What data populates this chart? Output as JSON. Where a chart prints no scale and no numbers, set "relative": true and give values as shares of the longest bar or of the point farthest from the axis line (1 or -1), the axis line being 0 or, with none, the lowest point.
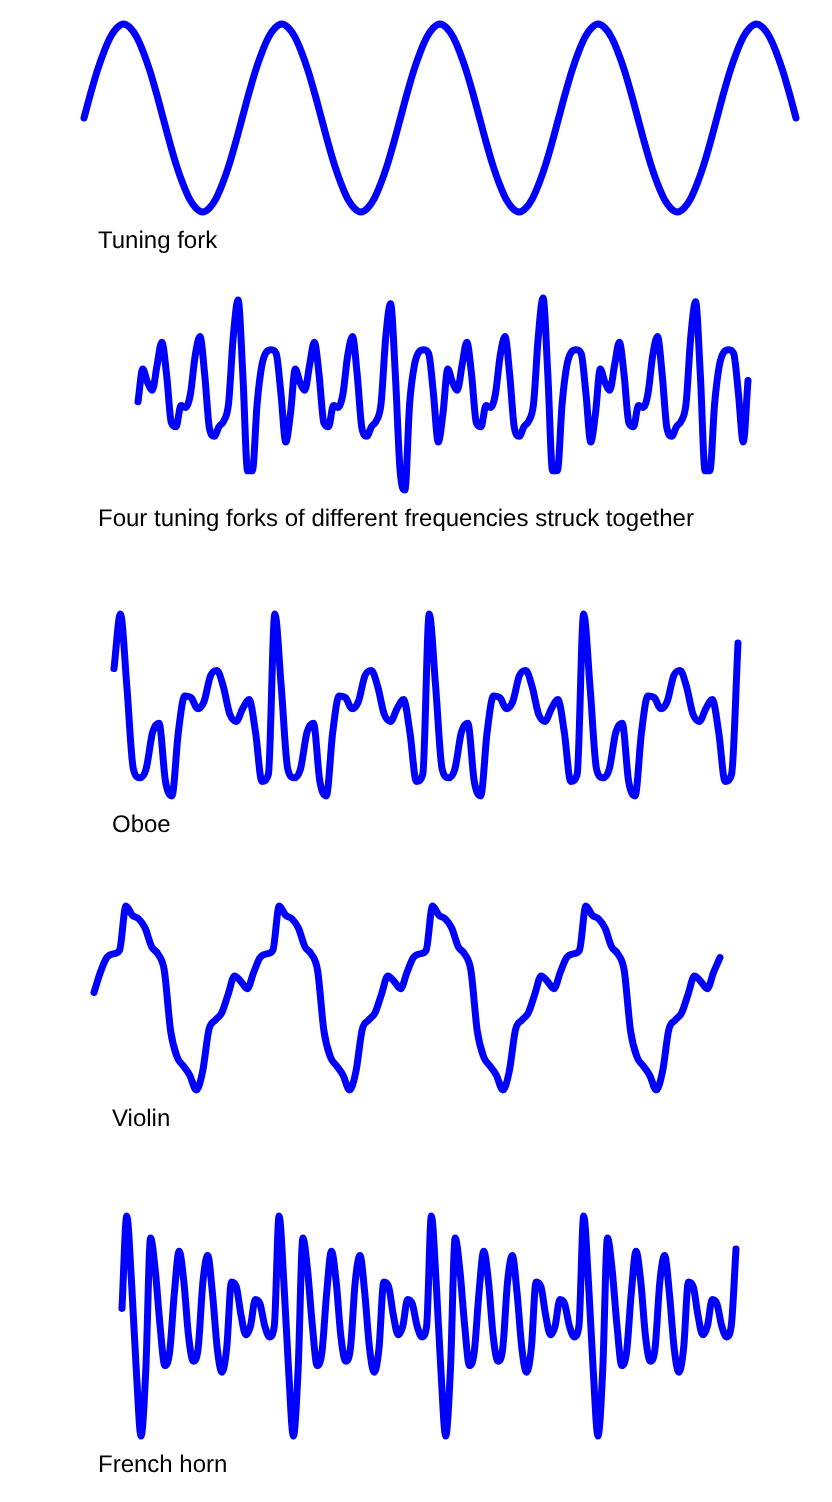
{
  "chart_data": [
    {
      "type": "line",
      "title": "Tuning fork",
      "relative": true,
      "marker": "none",
      "color": "#0000ff",
      "categories": [
        null,
        null,
        null,
        null,
        null,
        null,
        null,
        null,
        null,
        null,
        null,
        null,
        null,
        null,
        null,
        null,
        null,
        null,
        null,
        null,
        null,
        null,
        null,
        null,
        null,
        null,
        null,
        null,
        null,
        null,
        null,
        null,
        null,
        null,
        null,
        null,
        null,
        null,
        null,
        null,
        null,
        null,
        null,
        null,
        null,
        null,
        null,
        null,
        null,
        null,
        null,
        null,
        null,
        null,
        null,
        null,
        null,
        null,
        null,
        null,
        null,
        null,
        null,
        null,
        null,
        null,
        null,
        null,
        null,
        null,
        null,
        null,
        null,
        null,
        null,
        null,
        null,
        null,
        null,
        null,
        null,
        null,
        null,
        null,
        null,
        null,
        null,
        null,
        null,
        null,
        null,
        null,
        null,
        null,
        null,
        null,
        null,
        null,
        null,
        null,
        null,
        null,
        null,
        null,
        null,
        null,
        null,
        null,
        null
      ],
      "values": [
        0.5,
        0.63,
        0.75,
        0.85,
        0.93,
        0.98,
        1,
        0.98,
        0.93,
        0.85,
        0.75,
        0.63,
        0.5,
        0.37,
        0.25,
        0.15,
        0.07,
        0.02,
        0,
        0.02,
        0.07,
        0.15,
        0.25,
        0.37,
        0.5,
        0.63,
        0.75,
        0.85,
        0.93,
        0.98,
        1,
        0.98,
        0.93,
        0.85,
        0.75,
        0.63,
        0.5,
        0.37,
        0.25,
        0.15,
        0.07,
        0.02,
        0,
        0.02,
        0.07,
        0.15,
        0.25,
        0.37,
        0.5,
        0.63,
        0.75,
        0.85,
        0.93,
        0.98,
        1,
        0.98,
        0.93,
        0.85,
        0.75,
        0.63,
        0.5,
        0.37,
        0.25,
        0.15,
        0.07,
        0.02,
        0,
        0.02,
        0.07,
        0.15,
        0.25,
        0.37,
        0.5,
        0.63,
        0.75,
        0.85,
        0.93,
        0.98,
        1,
        0.98,
        0.93,
        0.85,
        0.75,
        0.63,
        0.5,
        0.37,
        0.25,
        0.15,
        0.07,
        0.02,
        0,
        0.02,
        0.07,
        0.15,
        0.25,
        0.37,
        0.5,
        0.63,
        0.75,
        0.85,
        0.93,
        0.98,
        1,
        0.98,
        0.93,
        0.85,
        0.75,
        0.63,
        0.5
      ]
    },
    {
      "type": "line",
      "title": "Four tuning forks of different frequencies struck together",
      "relative": true,
      "marker": "none",
      "color": "#0000ff",
      "categories": [
        null,
        null,
        null,
        null,
        null,
        null,
        null,
        null,
        null,
        null,
        null,
        null,
        null,
        null,
        null,
        null,
        null,
        null,
        null,
        null,
        null,
        null,
        null,
        null,
        null,
        null,
        null,
        null,
        null,
        null,
        null,
        null,
        null,
        null,
        null,
        null,
        null,
        null,
        null,
        null,
        null,
        null,
        null,
        null,
        null,
        null,
        null,
        null,
        null,
        null,
        null,
        null,
        null,
        null,
        null,
        null,
        null,
        null,
        null,
        null,
        null,
        null,
        null,
        null,
        null,
        null,
        null,
        null,
        null,
        null,
        null,
        null,
        null,
        null,
        null,
        null,
        null,
        null,
        null,
        null,
        null,
        null,
        null,
        null,
        null,
        null,
        null,
        null,
        null,
        null,
        null,
        null,
        null,
        null,
        null,
        null,
        null,
        null,
        null,
        null,
        null,
        null,
        null,
        null,
        null,
        null,
        null,
        null,
        null,
        null,
        null,
        null,
        null,
        null,
        null,
        null,
        null,
        null,
        null,
        null,
        null,
        null,
        null,
        null,
        null,
        null,
        null,
        null,
        null
      ],
      "values": [
        0.46,
        0.63,
        0.56,
        0.52,
        0.65,
        0.77,
        0.6,
        0.35,
        0.33,
        0.44,
        0.43,
        0.5,
        0.7,
        0.8,
        0.6,
        0.32,
        0.28,
        0.33,
        0.36,
        0.45,
        0.8,
        0.99,
        0.6,
        0.1,
        0.1,
        0.45,
        0.65,
        0.72,
        0.73,
        0.71,
        0.5,
        0.25,
        0.4,
        0.63,
        0.56,
        0.52,
        0.65,
        0.77,
        0.6,
        0.35,
        0.33,
        0.44,
        0.43,
        0.5,
        0.7,
        0.8,
        0.6,
        0.32,
        0.28,
        0.33,
        0.36,
        0.45,
        0.8,
        0.97,
        0.6,
        0.1,
        0,
        0.45,
        0.65,
        0.72,
        0.73,
        0.71,
        0.5,
        0.25,
        0.4,
        0.63,
        0.56,
        0.52,
        0.65,
        0.77,
        0.6,
        0.35,
        0.33,
        0.44,
        0.43,
        0.5,
        0.7,
        0.8,
        0.6,
        0.32,
        0.28,
        0.33,
        0.36,
        0.45,
        0.8,
        1,
        0.6,
        0.1,
        0.1,
        0.45,
        0.65,
        0.72,
        0.73,
        0.71,
        0.5,
        0.25,
        0.4,
        0.63,
        0.56,
        0.52,
        0.65,
        0.77,
        0.6,
        0.35,
        0.33,
        0.44,
        0.43,
        0.5,
        0.7,
        0.8,
        0.6,
        0.32,
        0.28,
        0.33,
        0.36,
        0.45,
        0.8,
        0.98,
        0.6,
        0.1,
        0.1,
        0.45,
        0.65,
        0.72,
        0.73,
        0.71,
        0.5,
        0.25,
        0.57
      ]
    },
    {
      "type": "line",
      "title": "Oboe",
      "relative": true,
      "marker": "none",
      "color": "#0000ff",
      "categories": [
        null,
        null,
        null,
        null,
        null,
        null,
        null,
        null,
        null,
        null,
        null,
        null,
        null,
        null,
        null,
        null,
        null,
        null,
        null,
        null,
        null,
        null,
        null,
        null,
        null,
        null,
        null,
        null,
        null,
        null,
        null,
        null,
        null,
        null,
        null,
        null,
        null,
        null,
        null,
        null,
        null,
        null,
        null,
        null,
        null,
        null,
        null,
        null,
        null,
        null,
        null,
        null,
        null,
        null,
        null,
        null,
        null,
        null,
        null,
        null,
        null,
        null,
        null,
        null,
        null,
        null,
        null,
        null,
        null,
        null,
        null,
        null,
        null,
        null,
        null,
        null,
        null,
        null,
        null,
        null,
        null,
        null,
        null,
        null,
        null,
        null,
        null,
        null,
        null,
        null,
        null,
        null,
        null,
        null,
        null,
        null,
        null,
        null
      ],
      "values": [
        0.7,
        1,
        0.6,
        0.15,
        0.1,
        0.15,
        0.35,
        0.4,
        0.08,
        0,
        0.35,
        0.55,
        0.54,
        0.48,
        0.52,
        0.66,
        0.69,
        0.6,
        0.45,
        0.41,
        0.48,
        0.53,
        0.35,
        0.08,
        0.12,
        1,
        0.6,
        0.15,
        0.1,
        0.15,
        0.35,
        0.4,
        0.08,
        0,
        0.35,
        0.55,
        0.54,
        0.48,
        0.52,
        0.66,
        0.69,
        0.6,
        0.45,
        0.41,
        0.48,
        0.53,
        0.35,
        0.08,
        0.12,
        1,
        0.6,
        0.15,
        0.1,
        0.15,
        0.35,
        0.4,
        0.08,
        0,
        0.35,
        0.55,
        0.54,
        0.48,
        0.52,
        0.66,
        0.69,
        0.6,
        0.45,
        0.41,
        0.48,
        0.53,
        0.35,
        0.08,
        0.12,
        1,
        0.6,
        0.15,
        0.1,
        0.15,
        0.35,
        0.4,
        0.08,
        0,
        0.35,
        0.55,
        0.54,
        0.48,
        0.52,
        0.66,
        0.69,
        0.6,
        0.45,
        0.41,
        0.48,
        0.53,
        0.35,
        0.08,
        0.12,
        0.84
      ]
    },
    {
      "type": "line",
      "title": "Violin",
      "relative": true,
      "marker": "none",
      "color": "#0000ff",
      "categories": [
        null,
        null,
        null,
        null,
        null,
        null,
        null,
        null,
        null,
        null,
        null,
        null,
        null,
        null,
        null,
        null,
        null,
        null,
        null,
        null,
        null,
        null,
        null,
        null,
        null,
        null,
        null,
        null,
        null,
        null,
        null,
        null,
        null,
        null,
        null,
        null,
        null,
        null,
        null,
        null,
        null,
        null,
        null,
        null,
        null,
        null,
        null,
        null,
        null,
        null,
        null,
        null,
        null,
        null,
        null,
        null,
        null,
        null,
        null,
        null,
        null,
        null,
        null,
        null,
        null,
        null,
        null,
        null,
        null,
        null,
        null,
        null,
        null,
        null,
        null,
        null,
        null,
        null,
        null,
        null,
        null,
        null,
        null,
        null,
        null,
        null,
        null,
        null,
        null,
        null,
        null,
        null,
        null,
        null,
        null,
        null,
        null,
        null,
        null
      ],
      "values": [
        0.53,
        0.64,
        0.72,
        0.74,
        0.76,
        1,
        0.95,
        0.93,
        0.88,
        0.78,
        0.74,
        0.65,
        0.32,
        0.18,
        0.13,
        0.08,
        0,
        0.1,
        0.33,
        0.38,
        0.42,
        0.52,
        0.62,
        0.59,
        0.55,
        0.64,
        0.72,
        0.74,
        0.76,
        1,
        0.95,
        0.93,
        0.88,
        0.78,
        0.74,
        0.65,
        0.32,
        0.18,
        0.13,
        0.08,
        0,
        0.1,
        0.33,
        0.38,
        0.42,
        0.52,
        0.62,
        0.59,
        0.55,
        0.64,
        0.72,
        0.74,
        0.76,
        1,
        0.95,
        0.93,
        0.88,
        0.78,
        0.74,
        0.65,
        0.32,
        0.18,
        0.13,
        0.08,
        0,
        0.1,
        0.33,
        0.38,
        0.42,
        0.52,
        0.62,
        0.59,
        0.55,
        0.64,
        0.72,
        0.74,
        0.76,
        1,
        0.95,
        0.93,
        0.88,
        0.78,
        0.74,
        0.65,
        0.32,
        0.18,
        0.13,
        0.08,
        0,
        0.1,
        0.33,
        0.38,
        0.42,
        0.52,
        0.62,
        0.59,
        0.55,
        0.64,
        0.72
      ]
    },
    {
      "type": "line",
      "title": "French horn",
      "relative": true,
      "marker": "none",
      "color": "#0000ff",
      "categories": [
        null,
        null,
        null,
        null,
        null,
        null,
        null,
        null,
        null,
        null,
        null,
        null,
        null,
        null,
        null,
        null,
        null,
        null,
        null,
        null,
        null,
        null,
        null,
        null,
        null,
        null,
        null,
        null,
        null,
        null,
        null,
        null,
        null,
        null,
        null,
        null,
        null,
        null,
        null,
        null,
        null,
        null,
        null,
        null,
        null,
        null,
        null,
        null,
        null,
        null,
        null,
        null,
        null,
        null,
        null,
        null,
        null,
        null,
        null,
        null,
        null,
        null,
        null,
        null,
        null,
        null,
        null,
        null,
        null,
        null,
        null,
        null,
        null,
        null,
        null,
        null,
        null,
        null,
        null,
        null,
        null,
        null,
        null,
        null,
        null,
        null,
        null,
        null,
        null,
        null,
        null,
        null,
        null,
        null,
        null,
        null,
        null,
        null,
        null,
        null,
        null,
        null,
        null,
        null,
        null,
        null,
        null,
        null,
        null,
        null,
        null,
        null,
        null,
        null,
        null,
        null,
        null,
        null,
        null,
        null,
        null,
        null,
        null,
        null,
        null,
        null,
        null,
        null,
        null,
        null
      ],
      "values": [
        0.58,
        1,
        0.7,
        0.3,
        0,
        0.3,
        0.9,
        0.75,
        0.5,
        0.32,
        0.38,
        0.65,
        0.84,
        0.7,
        0.45,
        0.34,
        0.4,
        0.7,
        0.82,
        0.65,
        0.4,
        0.29,
        0.4,
        0.7,
        0.68,
        0.55,
        0.46,
        0.5,
        0.62,
        0.6,
        0.5,
        0.45,
        0.5,
        1,
        0.7,
        0.3,
        0,
        0.3,
        0.9,
        0.75,
        0.5,
        0.32,
        0.38,
        0.65,
        0.84,
        0.7,
        0.45,
        0.34,
        0.4,
        0.7,
        0.82,
        0.65,
        0.4,
        0.29,
        0.4,
        0.7,
        0.68,
        0.55,
        0.46,
        0.5,
        0.62,
        0.6,
        0.5,
        0.45,
        0.5,
        1,
        0.7,
        0.3,
        0,
        0.3,
        0.9,
        0.75,
        0.5,
        0.32,
        0.38,
        0.65,
        0.84,
        0.7,
        0.45,
        0.34,
        0.4,
        0.7,
        0.82,
        0.65,
        0.4,
        0.29,
        0.4,
        0.7,
        0.68,
        0.55,
        0.46,
        0.5,
        0.62,
        0.6,
        0.5,
        0.45,
        0.5,
        1,
        0.7,
        0.3,
        0,
        0.3,
        0.9,
        0.75,
        0.5,
        0.32,
        0.38,
        0.65,
        0.84,
        0.7,
        0.45,
        0.34,
        0.4,
        0.7,
        0.82,
        0.65,
        0.4,
        0.29,
        0.4,
        0.7,
        0.68,
        0.55,
        0.46,
        0.5,
        0.62,
        0.6,
        0.5,
        0.45,
        0.5,
        0.85
      ]
    }
  ]
}
